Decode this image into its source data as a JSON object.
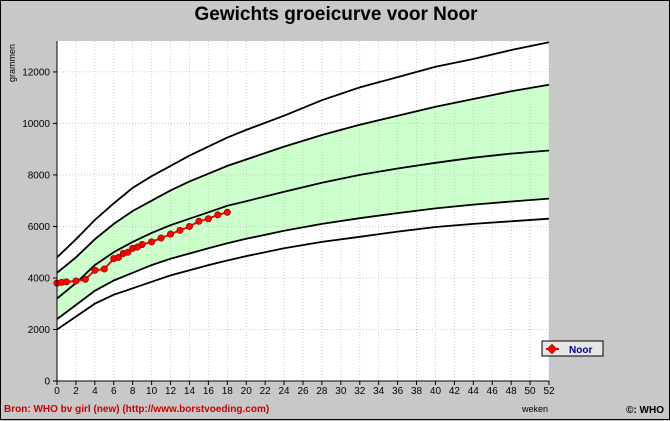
{
  "chart_data": {
    "type": "line",
    "title": "Gewichts groeicurve voor Noor",
    "xlabel": "weken",
    "ylabel": "grammen",
    "xlim": [
      0,
      52
    ],
    "ylim": [
      0,
      13200
    ],
    "x_ticks": [
      0,
      2,
      4,
      6,
      8,
      10,
      12,
      14,
      16,
      18,
      20,
      22,
      24,
      26,
      28,
      30,
      32,
      34,
      36,
      38,
      40,
      42,
      44,
      46,
      48,
      50,
      52
    ],
    "y_ticks": [
      0,
      2000,
      4000,
      6000,
      8000,
      10000,
      12000
    ],
    "grid": true,
    "legend_position": "bottom-right",
    "reference_curves": [
      {
        "x": [
          0,
          2,
          4,
          6,
          8,
          10,
          12,
          14,
          16,
          18,
          20,
          24,
          28,
          32,
          36,
          40,
          44,
          48,
          52
        ],
        "y": [
          2000,
          2500,
          3000,
          3350,
          3600,
          3850,
          4100,
          4300,
          4500,
          4680,
          4850,
          5150,
          5400,
          5600,
          5800,
          5980,
          6100,
          6200,
          6300
        ]
      },
      {
        "x": [
          0,
          2,
          4,
          6,
          8,
          10,
          12,
          14,
          16,
          18,
          20,
          24,
          28,
          32,
          36,
          40,
          44,
          48,
          52
        ],
        "y": [
          2400,
          2950,
          3500,
          3900,
          4200,
          4500,
          4750,
          4950,
          5150,
          5350,
          5520,
          5830,
          6100,
          6320,
          6520,
          6700,
          6850,
          6970,
          7080
        ]
      },
      {
        "x": [
          0,
          2,
          4,
          6,
          8,
          10,
          12,
          14,
          16,
          18,
          20,
          24,
          28,
          32,
          36,
          40,
          44,
          48,
          52
        ],
        "y": [
          3200,
          3800,
          4500,
          5000,
          5400,
          5750,
          6050,
          6300,
          6550,
          6800,
          6980,
          7350,
          7700,
          8000,
          8250,
          8470,
          8670,
          8830,
          8950
        ]
      },
      {
        "x": [
          0,
          2,
          4,
          6,
          8,
          10,
          12,
          14,
          16,
          18,
          20,
          24,
          28,
          32,
          36,
          40,
          44,
          48,
          52
        ],
        "y": [
          4200,
          4800,
          5500,
          6100,
          6600,
          7000,
          7400,
          7750,
          8050,
          8350,
          8600,
          9100,
          9550,
          9950,
          10300,
          10650,
          10950,
          11250,
          11500
        ]
      },
      {
        "x": [
          0,
          2,
          4,
          6,
          8,
          10,
          12,
          14,
          16,
          18,
          20,
          24,
          28,
          32,
          36,
          40,
          44,
          48,
          52
        ],
        "y": [
          4800,
          5500,
          6250,
          6900,
          7500,
          7950,
          8350,
          8750,
          9100,
          9450,
          9750,
          10300,
          10900,
          11400,
          11800,
          12200,
          12500,
          12850,
          13150
        ]
      }
    ],
    "band_color": "#ccffcc",
    "series": [
      {
        "name": "Noor",
        "color": "#ff0000",
        "x": [
          0,
          0.5,
          1,
          2,
          3,
          4,
          5,
          6,
          6.5,
          7,
          7.5,
          8,
          8.5,
          9,
          10,
          11,
          12,
          13,
          14,
          15,
          16,
          17,
          18
        ],
        "y": [
          3800,
          3830,
          3850,
          3880,
          3950,
          4300,
          4350,
          4750,
          4800,
          4950,
          5000,
          5150,
          5200,
          5300,
          5400,
          5550,
          5700,
          5850,
          6000,
          6200,
          6300,
          6450,
          6550
        ]
      }
    ]
  },
  "footer": {
    "source": "Bron: WHO bv girl (new) (http://www.borstvoeding.com)",
    "copyright": "©: WHO"
  }
}
